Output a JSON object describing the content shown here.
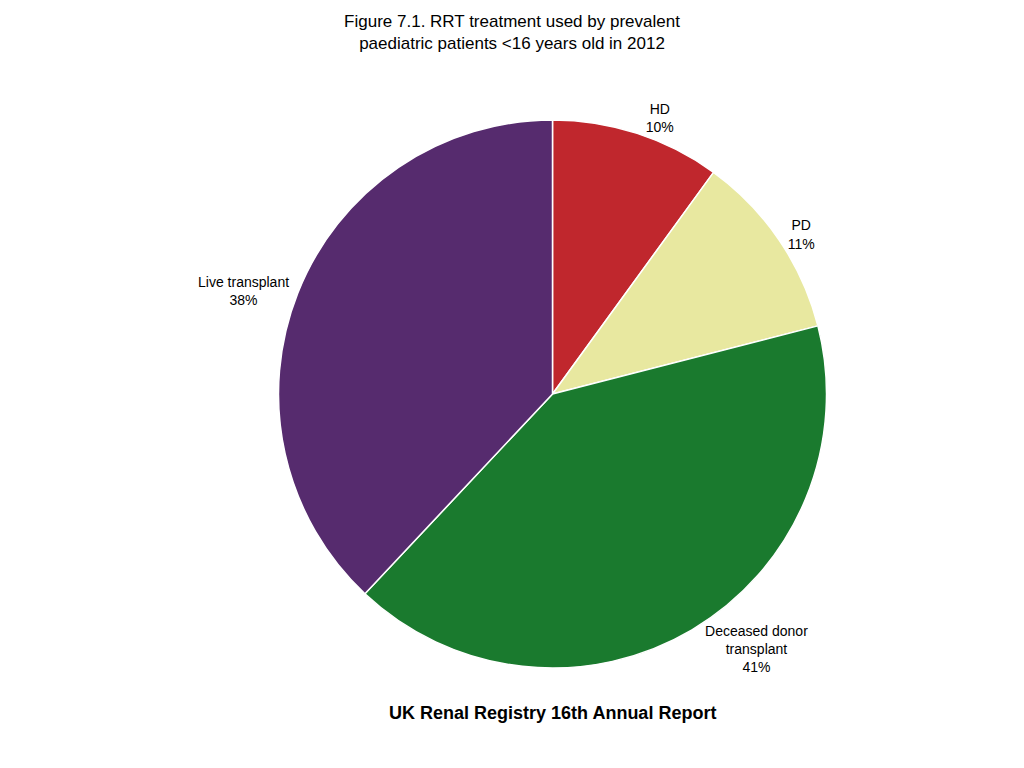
{
  "chart_data": {
    "type": "pie",
    "title": "Figure 7.1. RRT treatment used by prevalent\npaediatric patients <16 years old in 2012",
    "categories": [
      "HD",
      "PD",
      "Deceased donor\ntransplant",
      "Live transplant"
    ],
    "values": [
      10,
      11,
      41,
      38
    ],
    "value_labels": [
      "10%",
      "11%",
      "41%",
      "38%"
    ],
    "colors": [
      "#c0272d",
      "#e8e8a0",
      "#1a7a2e",
      "#562b6e"
    ],
    "annotations": [
      "UK Renal Registry 16th Annual Report"
    ]
  }
}
